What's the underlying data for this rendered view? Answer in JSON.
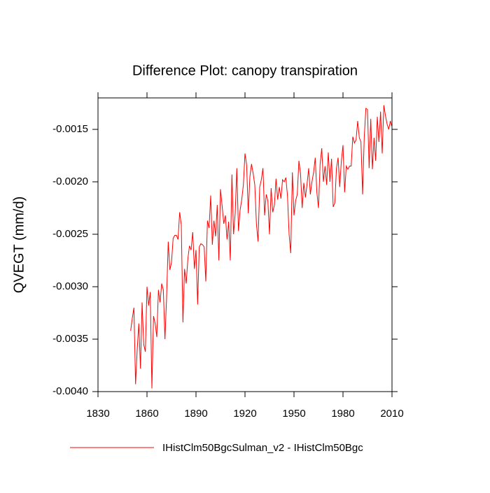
{
  "chart_data": {
    "type": "line",
    "title": "Difference Plot: canopy transpiration",
    "y_label": "QVEGT  (mm/d)",
    "xlim": [
      1830,
      2010
    ],
    "xticks": [
      1830,
      1860,
      1890,
      1920,
      1950,
      1980,
      2010
    ],
    "ylim": [
      -0.004,
      -0.0012
    ],
    "yticks": [
      {
        "value": -0.004,
        "label": "-0.0040"
      },
      -0.0035,
      {
        "value": -0.003,
        "label": "-0.0030"
      },
      -0.0025,
      {
        "value": -0.002,
        "label": "-0.0020"
      },
      -0.0015
    ],
    "x": [
      1850,
      1851,
      1852,
      1853,
      1854,
      1855,
      1856,
      1857,
      1858,
      1859,
      1860,
      1861,
      1862,
      1863,
      1864,
      1865,
      1866,
      1867,
      1868,
      1869,
      1870,
      1871,
      1872,
      1873,
      1874,
      1875,
      1876,
      1877,
      1878,
      1879,
      1880,
      1881,
      1882,
      1883,
      1884,
      1885,
      1886,
      1887,
      1888,
      1889,
      1890,
      1891,
      1892,
      1893,
      1894,
      1895,
      1896,
      1897,
      1898,
      1899,
      1900,
      1901,
      1902,
      1903,
      1904,
      1905,
      1906,
      1907,
      1908,
      1909,
      1910,
      1911,
      1912,
      1913,
      1914,
      1915,
      1916,
      1917,
      1918,
      1919,
      1920,
      1921,
      1922,
      1923,
      1924,
      1925,
      1926,
      1927,
      1928,
      1929,
      1930,
      1931,
      1932,
      1933,
      1934,
      1935,
      1936,
      1937,
      1938,
      1939,
      1940,
      1941,
      1942,
      1943,
      1944,
      1945,
      1946,
      1947,
      1948,
      1949,
      1950,
      1951,
      1952,
      1953,
      1954,
      1955,
      1956,
      1957,
      1958,
      1959,
      1960,
      1961,
      1962,
      1963,
      1964,
      1965,
      1966,
      1967,
      1968,
      1969,
      1970,
      1971,
      1972,
      1973,
      1974,
      1975,
      1976,
      1977,
      1978,
      1979,
      1980,
      1981,
      1982,
      1983,
      1984,
      1985,
      1986,
      1987,
      1988,
      1989,
      1990,
      1991,
      1992,
      1993,
      1994,
      1995,
      1996,
      1997,
      1998,
      1999,
      2000,
      2001,
      2002,
      2003,
      2004,
      2005,
      2006,
      2007,
      2008,
      2009,
      2010
    ],
    "series": [
      {
        "name": "IHistClm50BgcSulman_v2 - IHistClm50Bgc",
        "color": "#ff0000",
        "values": [
          -0.00342,
          -0.0033,
          -0.0032,
          -0.00393,
          -0.0036,
          -0.00335,
          -0.00378,
          -0.00315,
          -0.00355,
          -0.00362,
          -0.003,
          -0.00318,
          -0.00305,
          -0.00397,
          -0.00328,
          -0.00335,
          -0.00348,
          -0.00303,
          -0.00315,
          -0.00297,
          -0.00303,
          -0.0035,
          -0.0031,
          -0.00257,
          -0.00284,
          -0.00277,
          -0.00254,
          -0.00251,
          -0.00251,
          -0.00255,
          -0.00229,
          -0.00241,
          -0.00334,
          -0.00283,
          -0.00297,
          -0.00274,
          -0.00261,
          -0.00265,
          -0.00248,
          -0.00283,
          -0.00265,
          -0.00317,
          -0.00262,
          -0.00259,
          -0.0026,
          -0.00262,
          -0.00295,
          -0.00237,
          -0.00244,
          -0.00213,
          -0.0026,
          -0.00237,
          -0.00252,
          -0.00222,
          -0.00275,
          -0.00207,
          -0.00223,
          -0.0024,
          -0.00232,
          -0.00255,
          -0.00238,
          -0.00275,
          -0.00193,
          -0.0025,
          -0.0023,
          -0.00187,
          -0.00247,
          -0.00227,
          -0.00217,
          -0.00203,
          -0.00173,
          -0.00184,
          -0.0023,
          -0.00195,
          -0.00183,
          -0.00192,
          -0.00203,
          -0.0024,
          -0.00257,
          -0.00205,
          -0.00198,
          -0.00187,
          -0.00232,
          -0.00212,
          -0.00218,
          -0.0025,
          -0.00206,
          -0.00229,
          -0.00222,
          -0.00197,
          -0.00217,
          -0.00205,
          -0.00216,
          -0.00198,
          -0.002,
          -0.00196,
          -0.00213,
          -0.0025,
          -0.00268,
          -0.00191,
          -0.00232,
          -0.00218,
          -0.00212,
          -0.0018,
          -0.00192,
          -0.00225,
          -0.00201,
          -0.00215,
          -0.00202,
          -0.00187,
          -0.00212,
          -0.002,
          -0.00191,
          -0.00177,
          -0.0021,
          -0.00225,
          -0.00183,
          -0.00168,
          -0.002,
          -0.00185,
          -0.00203,
          -0.00172,
          -0.002,
          -0.00178,
          -0.00224,
          -0.0022,
          -0.00187,
          -0.00177,
          -0.00205,
          -0.0018,
          -0.00165,
          -0.0021,
          -0.00185,
          -0.00188,
          -0.00185,
          -0.00185,
          -0.00157,
          -0.00163,
          -0.0016,
          -0.00142,
          -0.00158,
          -0.00162,
          -0.00212,
          -0.00158,
          -0.0013,
          -0.00131,
          -0.00187,
          -0.0014,
          -0.00188,
          -0.00158,
          -0.0018,
          -0.00138,
          -0.00162,
          -0.00133,
          -0.00173,
          -0.00127,
          -0.00137,
          -0.00145,
          -0.0015,
          -0.00142,
          -0.00148
        ]
      }
    ]
  }
}
